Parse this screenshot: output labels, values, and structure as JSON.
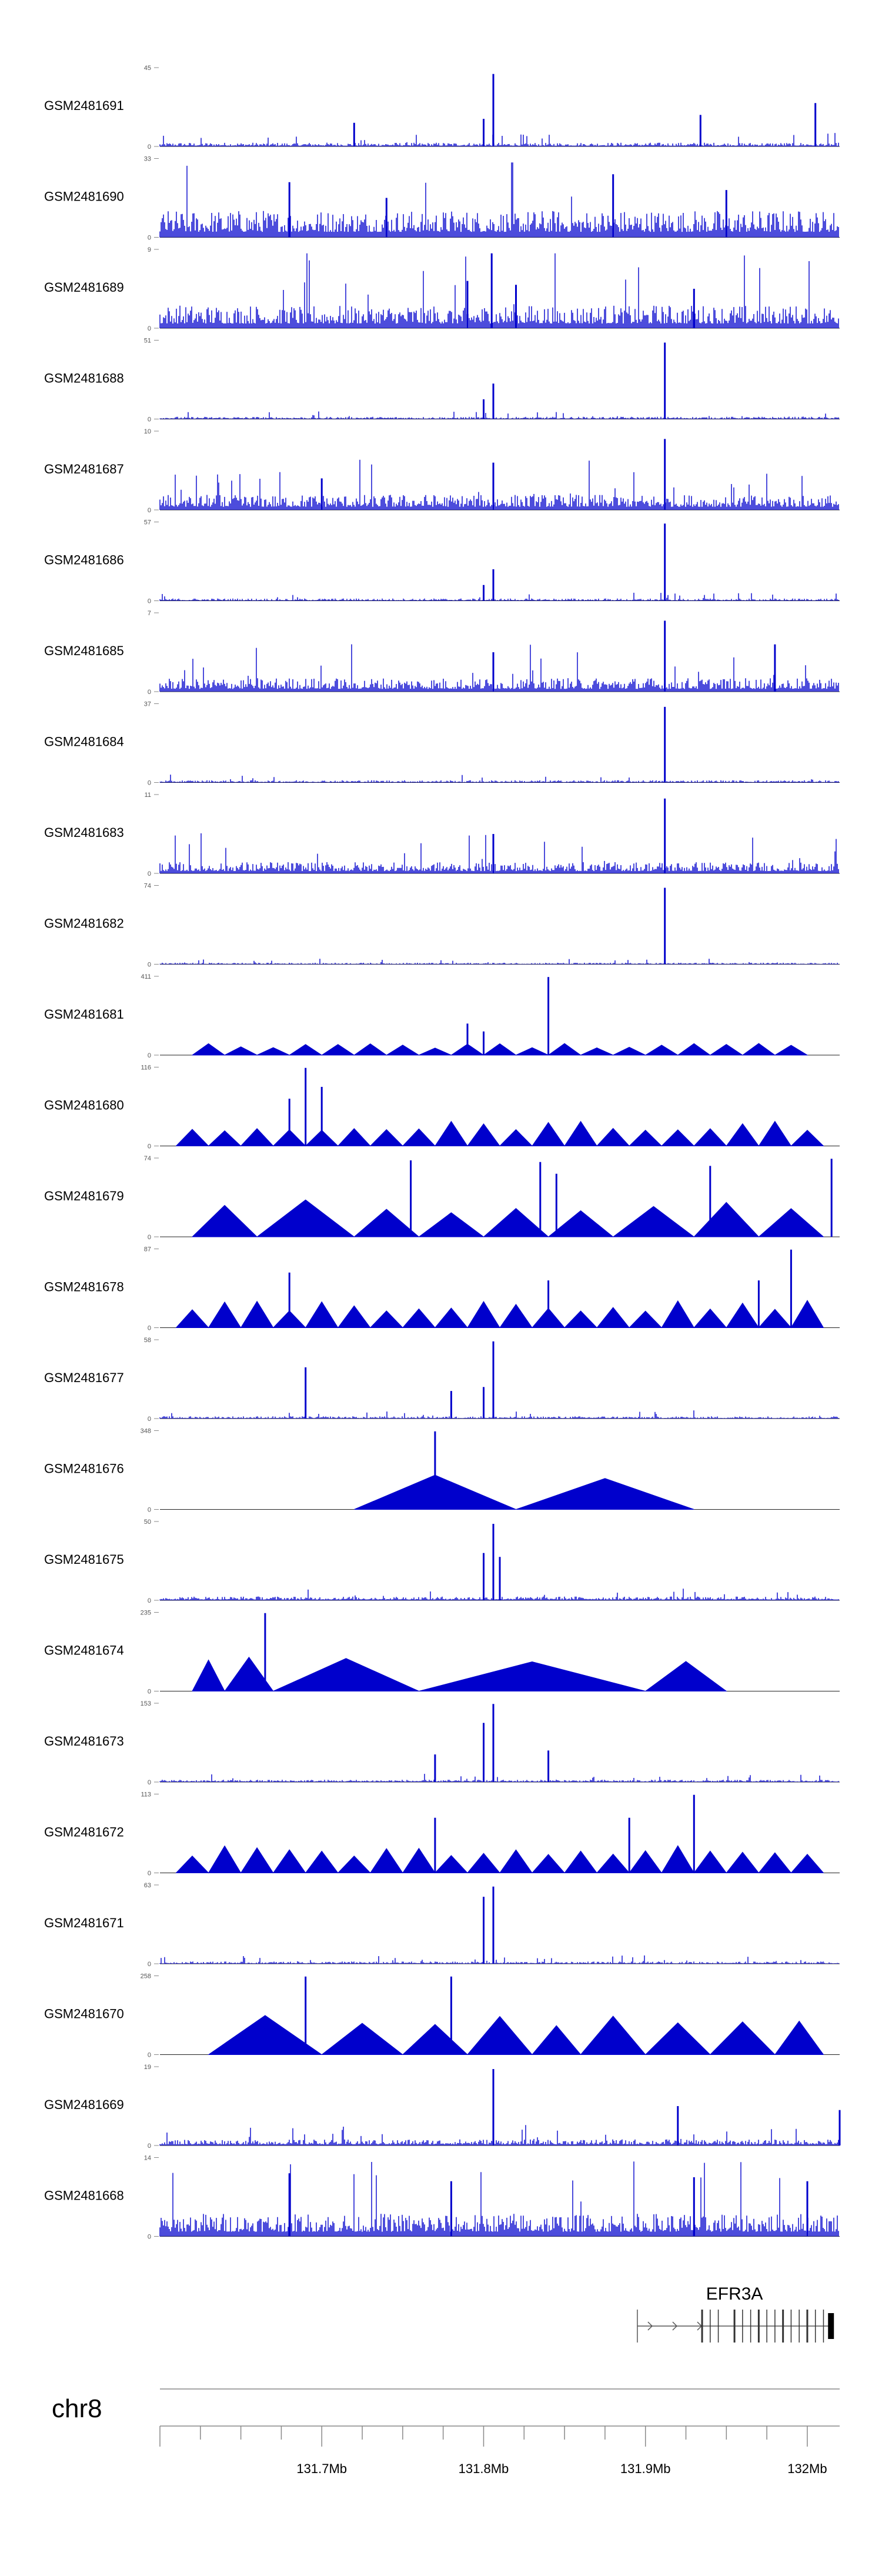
{
  "chart_data": {
    "type": "area",
    "chromosome": "chr8",
    "xlim": [
      131.6,
      132.02
    ],
    "x_ticks": [
      131.7,
      131.8,
      131.9,
      132.0
    ],
    "x_tick_labels": [
      "131.7Mb",
      "131.8Mb",
      "131.9Mb",
      "132Mb"
    ],
    "color": "#0000cc",
    "tracks": [
      {
        "name": "GSM2481691",
        "ymax": "45",
        "style": "dense",
        "base": 0.05,
        "peaks": [
          [
            131.806,
            0.92
          ],
          [
            131.8,
            0.35
          ],
          [
            131.934,
            0.4
          ],
          [
            132.005,
            0.55
          ],
          [
            131.72,
            0.3
          ]
        ]
      },
      {
        "name": "GSM2481690",
        "ymax": "33",
        "style": "dense",
        "base": 0.35,
        "peaks": [
          [
            131.68,
            0.7
          ],
          [
            131.88,
            0.8
          ],
          [
            131.74,
            0.5
          ],
          [
            131.95,
            0.6
          ]
        ]
      },
      {
        "name": "GSM2481689",
        "ymax": "9",
        "style": "dense",
        "base": 0.3,
        "peaks": [
          [
            131.805,
            0.95
          ],
          [
            131.79,
            0.6
          ],
          [
            131.82,
            0.55
          ],
          [
            131.93,
            0.5
          ]
        ]
      },
      {
        "name": "GSM2481688",
        "ymax": "51",
        "style": "dense",
        "base": 0.03,
        "peaks": [
          [
            131.912,
            0.97
          ],
          [
            131.806,
            0.45
          ],
          [
            131.8,
            0.25
          ]
        ]
      },
      {
        "name": "GSM2481687",
        "ymax": "10",
        "style": "dense",
        "base": 0.2,
        "peaks": [
          [
            131.912,
            0.9
          ],
          [
            131.806,
            0.6
          ],
          [
            131.7,
            0.4
          ]
        ]
      },
      {
        "name": "GSM2481686",
        "ymax": "57",
        "style": "dense",
        "base": 0.03,
        "peaks": [
          [
            131.912,
            0.98
          ],
          [
            131.806,
            0.4
          ],
          [
            131.8,
            0.2
          ]
        ]
      },
      {
        "name": "GSM2481685",
        "ymax": "7",
        "style": "dense",
        "base": 0.18,
        "peaks": [
          [
            131.912,
            0.9
          ],
          [
            131.98,
            0.6
          ],
          [
            131.806,
            0.5
          ]
        ]
      },
      {
        "name": "GSM2481684",
        "ymax": "37",
        "style": "dense",
        "base": 0.03,
        "peaks": [
          [
            131.912,
            0.96
          ]
        ]
      },
      {
        "name": "GSM2481683",
        "ymax": "11",
        "style": "dense",
        "base": 0.15,
        "peaks": [
          [
            131.912,
            0.95
          ],
          [
            131.806,
            0.5
          ]
        ]
      },
      {
        "name": "GSM2481682",
        "ymax": "74",
        "style": "dense",
        "base": 0.02,
        "peaks": [
          [
            131.912,
            0.97
          ]
        ]
      },
      {
        "name": "GSM2481681",
        "ymax": "411",
        "style": "sparse",
        "height": 0.15,
        "x": [
          131.62,
          131.64,
          131.66,
          131.68,
          131.7,
          131.72,
          131.74,
          131.76,
          131.78,
          131.8,
          131.82,
          131.84,
          131.86,
          131.88,
          131.9,
          131.92,
          131.94,
          131.96,
          131.98,
          132.0
        ],
        "peaks": [
          [
            131.84,
            0.99
          ],
          [
            131.79,
            0.4
          ],
          [
            131.8,
            0.3
          ]
        ]
      },
      {
        "name": "GSM2481680",
        "ymax": "116",
        "style": "sparse",
        "height": 0.32,
        "x": [
          131.61,
          131.63,
          131.65,
          131.67,
          131.69,
          131.71,
          131.73,
          131.75,
          131.77,
          131.79,
          131.81,
          131.83,
          131.85,
          131.87,
          131.89,
          131.91,
          131.93,
          131.95,
          131.97,
          131.99,
          132.01
        ],
        "peaks": [
          [
            131.69,
            0.99
          ],
          [
            131.7,
            0.75
          ],
          [
            131.68,
            0.6
          ]
        ]
      },
      {
        "name": "GSM2481679",
        "ymax": "74",
        "style": "sparse",
        "height": 0.5,
        "x": [
          131.62,
          131.66,
          131.72,
          131.76,
          131.8,
          131.84,
          131.88,
          131.93,
          131.97,
          132.01
        ],
        "peaks": [
          [
            131.755,
            0.97
          ],
          [
            131.835,
            0.95
          ],
          [
            131.845,
            0.8
          ],
          [
            131.94,
            0.9
          ],
          [
            132.015,
            0.99
          ]
        ]
      },
      {
        "name": "GSM2481678",
        "ymax": "87",
        "style": "sparse",
        "height": 0.35,
        "x": [
          131.61,
          131.63,
          131.65,
          131.67,
          131.69,
          131.71,
          131.73,
          131.75,
          131.77,
          131.79,
          131.81,
          131.83,
          131.85,
          131.87,
          131.89,
          131.91,
          131.93,
          131.95,
          131.97,
          131.99,
          132.01
        ],
        "peaks": [
          [
            131.68,
            0.7
          ],
          [
            131.84,
            0.6
          ],
          [
            131.99,
            0.99
          ],
          [
            131.97,
            0.6
          ]
        ]
      },
      {
        "name": "GSM2481677",
        "ymax": "58",
        "style": "dense",
        "base": 0.03,
        "peaks": [
          [
            131.806,
            0.98
          ],
          [
            131.69,
            0.65
          ],
          [
            131.8,
            0.4
          ],
          [
            131.78,
            0.35
          ]
        ]
      },
      {
        "name": "GSM2481676",
        "ymax": "348",
        "style": "sparse",
        "height": 0.5,
        "x": [
          131.72,
          131.82,
          131.93
        ],
        "peaks": [
          [
            131.77,
            0.99
          ]
        ]
      },
      {
        "name": "GSM2481675",
        "ymax": "50",
        "style": "dense",
        "base": 0.05,
        "peaks": [
          [
            131.806,
            0.97
          ],
          [
            131.8,
            0.6
          ],
          [
            131.81,
            0.55
          ]
        ]
      },
      {
        "name": "GSM2481674",
        "ymax": "235",
        "style": "sparse",
        "height": 0.45,
        "x": [
          131.62,
          131.64,
          131.67,
          131.76,
          131.9,
          131.95
        ],
        "peaks": [
          [
            131.665,
            0.99
          ]
        ]
      },
      {
        "name": "GSM2481673",
        "ymax": "153",
        "style": "dense",
        "base": 0.03,
        "peaks": [
          [
            131.806,
            0.99
          ],
          [
            131.8,
            0.75
          ],
          [
            131.77,
            0.35
          ],
          [
            131.84,
            0.4
          ]
        ]
      },
      {
        "name": "GSM2481672",
        "ymax": "113",
        "style": "sparse",
        "height": 0.35,
        "x": [
          131.61,
          131.63,
          131.65,
          131.67,
          131.69,
          131.71,
          131.73,
          131.75,
          131.77,
          131.79,
          131.81,
          131.83,
          131.85,
          131.87,
          131.89,
          131.91,
          131.93,
          131.95,
          131.97,
          131.99,
          132.01
        ],
        "peaks": [
          [
            131.93,
            0.99
          ],
          [
            131.77,
            0.7
          ],
          [
            131.89,
            0.7
          ]
        ]
      },
      {
        "name": "GSM2481671",
        "ymax": "63",
        "style": "dense",
        "base": 0.03,
        "peaks": [
          [
            131.806,
            0.98
          ],
          [
            131.8,
            0.85
          ]
        ]
      },
      {
        "name": "GSM2481670",
        "ymax": "258",
        "style": "sparse",
        "height": 0.5,
        "x": [
          131.63,
          131.7,
          131.75,
          131.79,
          131.83,
          131.86,
          131.9,
          131.94,
          131.98,
          132.01
        ],
        "peaks": [
          [
            131.69,
            0.99
          ],
          [
            131.78,
            0.99
          ]
        ]
      },
      {
        "name": "GSM2481669",
        "ymax": "19",
        "style": "dense",
        "base": 0.08,
        "peaks": [
          [
            131.806,
            0.97
          ],
          [
            131.92,
            0.5
          ],
          [
            132.02,
            0.45
          ]
        ]
      },
      {
        "name": "GSM2481668",
        "ymax": "14",
        "style": "dense",
        "base": 0.3,
        "peaks": [
          [
            131.68,
            0.8
          ],
          [
            131.78,
            0.7
          ],
          [
            131.93,
            0.75
          ],
          [
            132.0,
            0.7
          ]
        ]
      }
    ],
    "gene": {
      "name": "EFR3A",
      "start": 131.895,
      "end": 132.015,
      "exons": [
        131.935,
        131.94,
        131.945,
        131.955,
        131.96,
        131.965,
        131.97,
        131.975,
        131.98,
        131.985,
        131.99,
        131.995,
        132.0,
        132.005,
        132.01
      ]
    }
  }
}
